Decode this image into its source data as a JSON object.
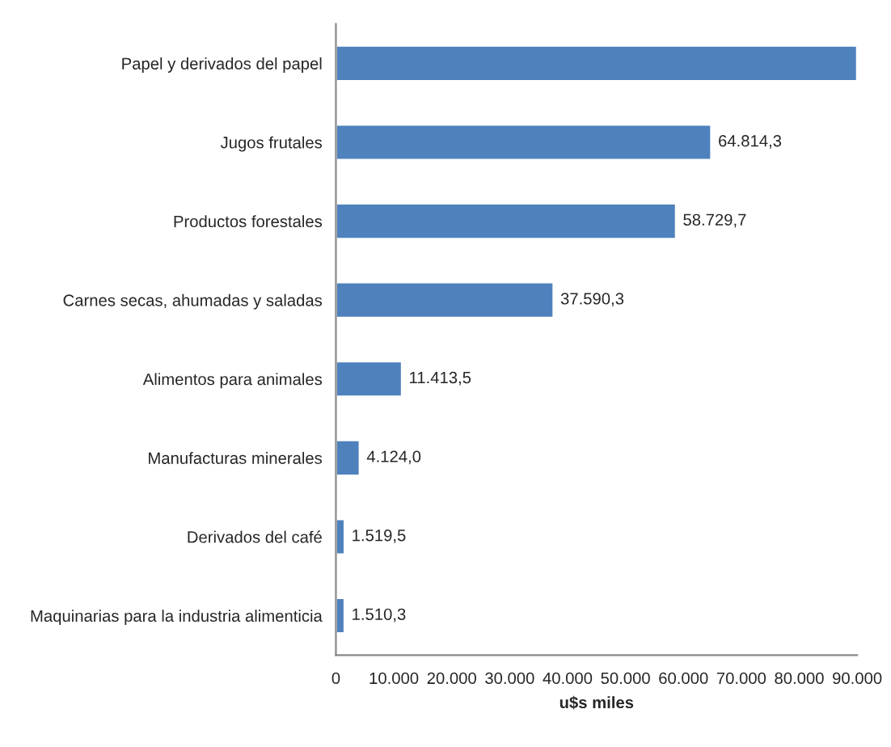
{
  "chart_data": {
    "type": "bar",
    "orientation": "horizontal",
    "xlabel": "u$s miles",
    "categories": [
      "Papel y derivados del papel",
      "Jugos frutales",
      "Productos forestales",
      "Carnes secas, ahumadas y saladas",
      "Alimentos para animales",
      "Manufacturas minerales",
      "Derivados del café",
      "Maquinarias para la industria alimenticia"
    ],
    "values": [
      90000,
      64814.3,
      58729.7,
      37590.3,
      11413.5,
      4124.0,
      1519.5,
      1510.3
    ],
    "value_labels": [
      null,
      "64.814,3",
      "58.729,7",
      "37.590,3",
      "11.413,5",
      "4.124,0",
      "1.519,5",
      "1.510,3"
    ],
    "color": "#4f81bd",
    "xlim": [
      0,
      90000
    ],
    "xticks": [
      0,
      {
        "value": 10000,
        "label": "10.000"
      },
      {
        "value": 20000,
        "label": "20.000"
      },
      {
        "value": 30000,
        "label": "30.000"
      },
      {
        "value": 40000,
        "label": "40.000"
      },
      {
        "value": 50000,
        "label": "50.000"
      },
      {
        "value": 60000,
        "label": "60.000"
      },
      {
        "value": 70000,
        "label": "70.000"
      },
      {
        "value": 80000,
        "label": "80.000"
      },
      {
        "value": 90000,
        "label": "90.000"
      }
    ],
    "grid": false,
    "legend": false
  }
}
